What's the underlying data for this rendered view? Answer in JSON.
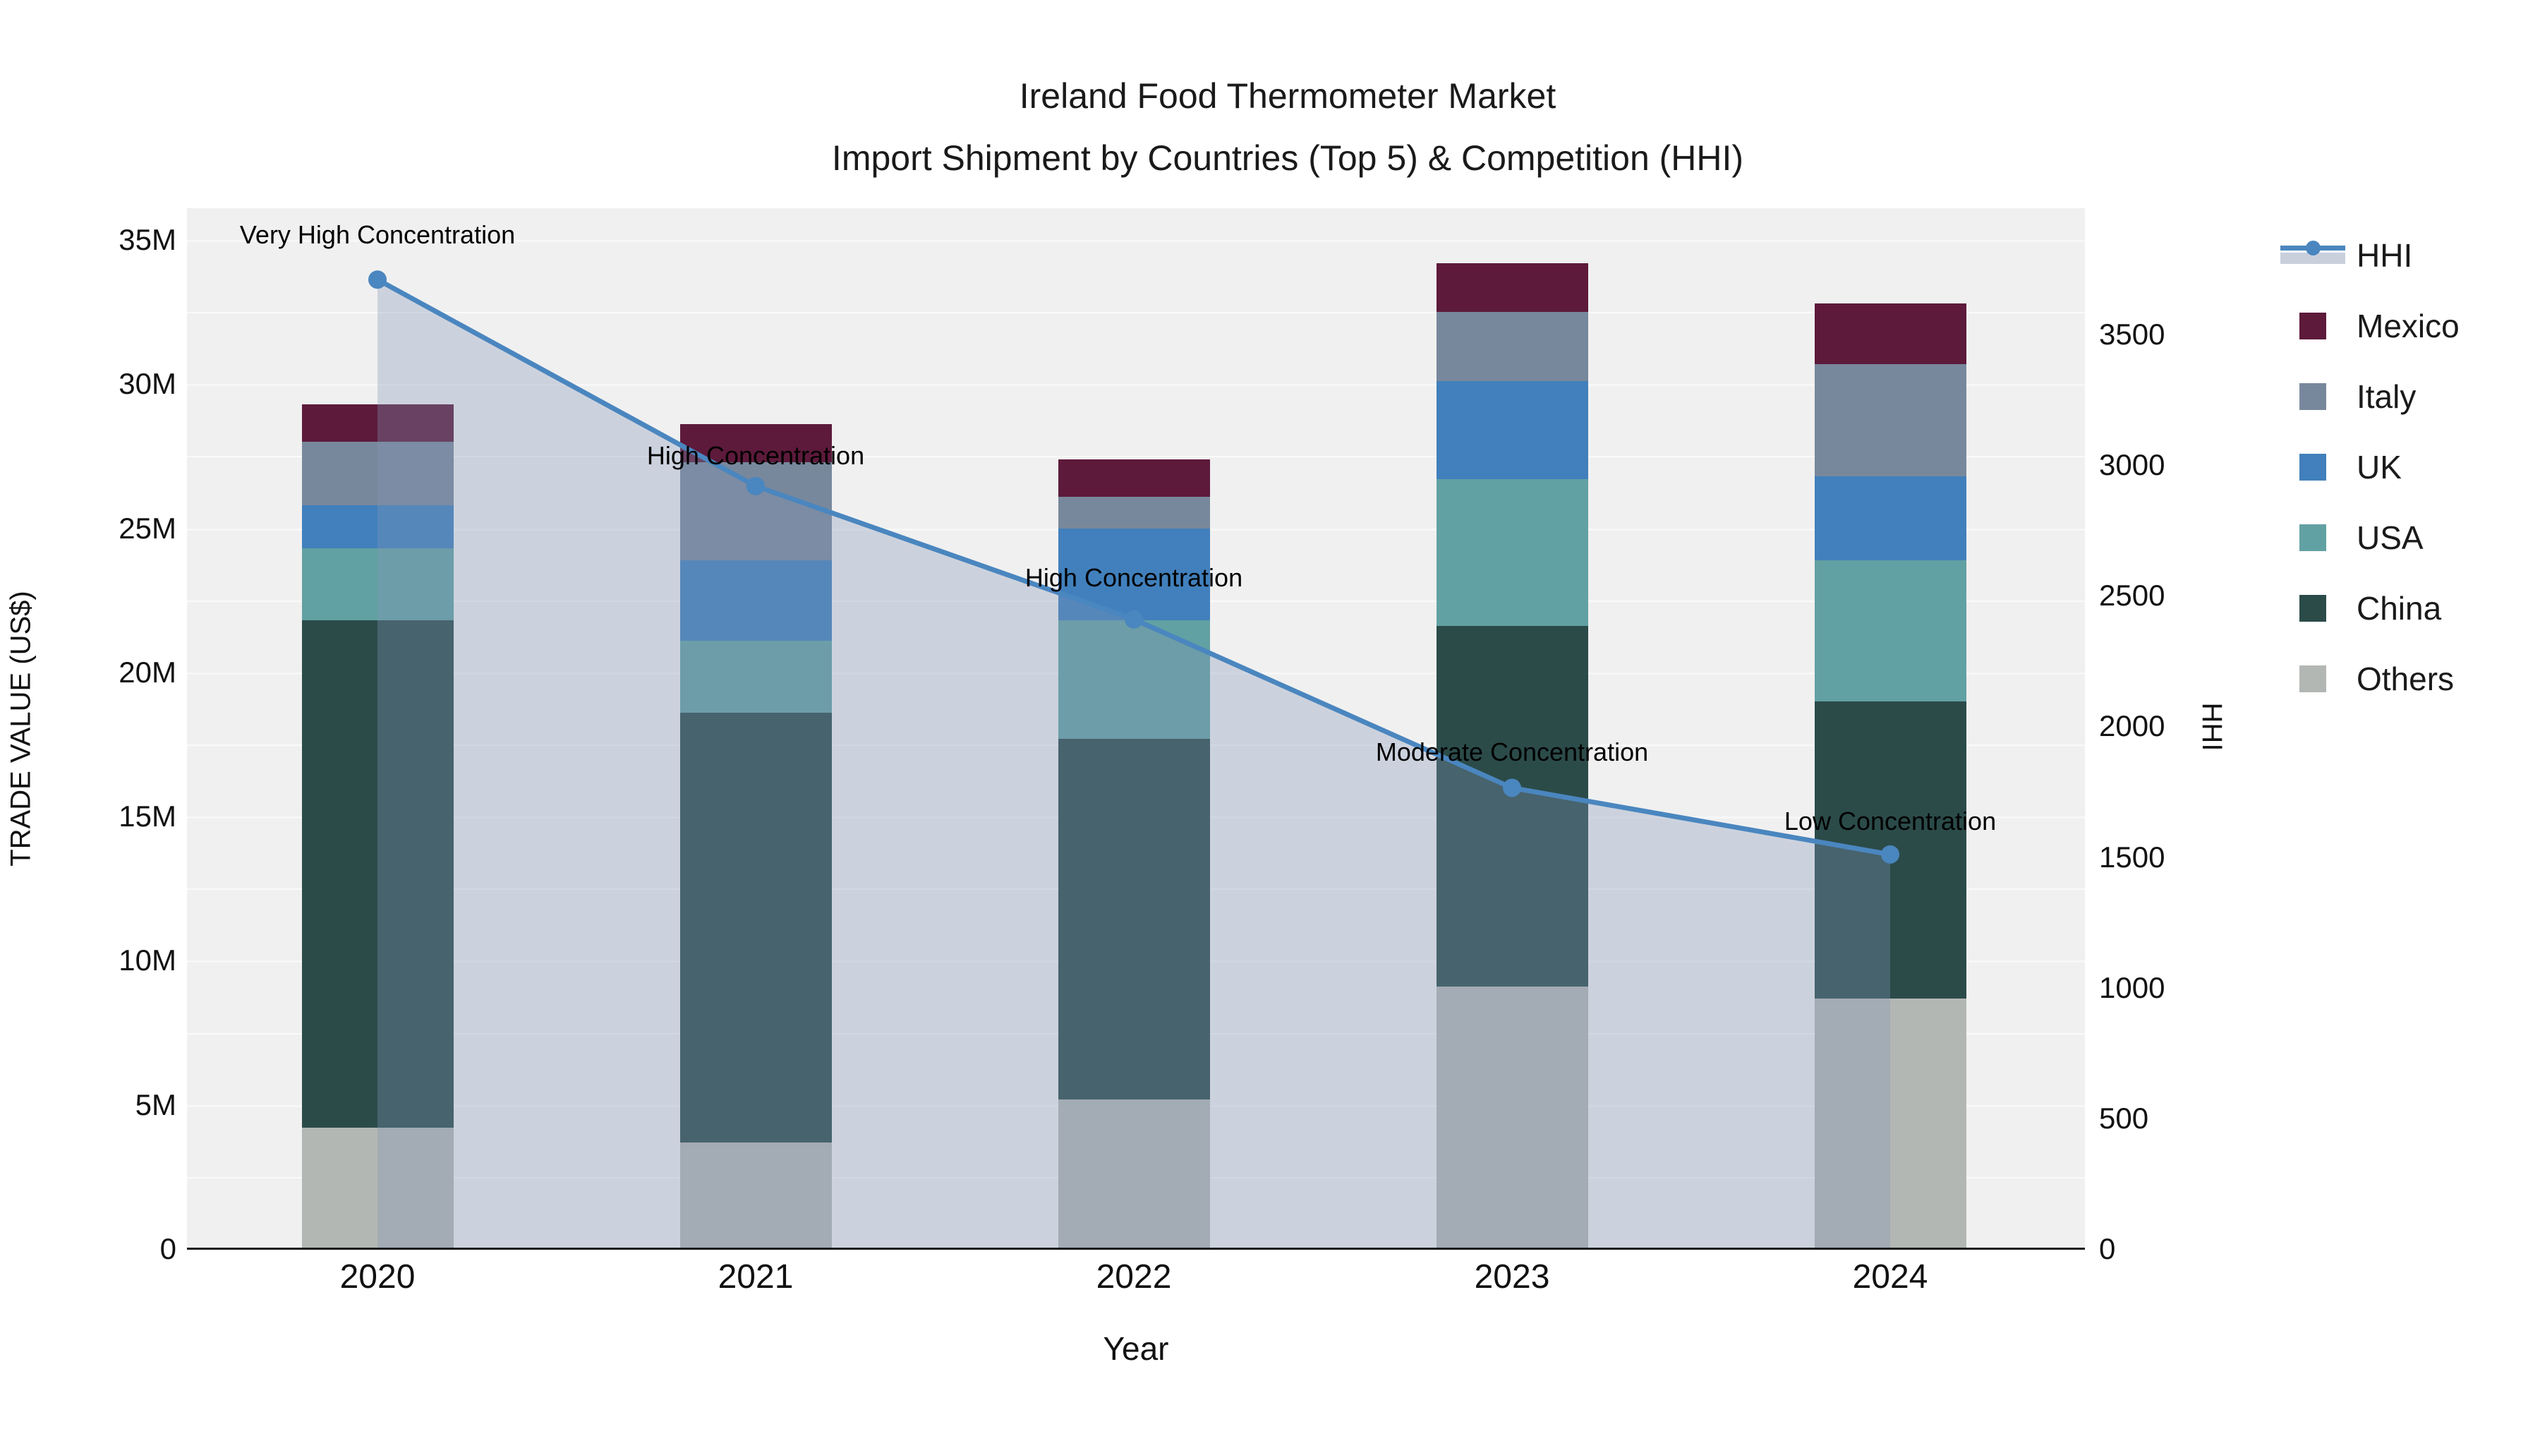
{
  "chart_data": {
    "type": "bar",
    "stacked": true,
    "title": "Ireland Food Thermometer Market",
    "subtitle": "Import Shipment by Countries (Top 5) & Competition (HHI)",
    "xlabel": "Year",
    "ylabel_left": "TRADE VALUE (US$)",
    "ylabel_right": "HHI",
    "categories": [
      "2020",
      "2021",
      "2022",
      "2023",
      "2024"
    ],
    "value_unit": "millions US$",
    "bar_series": [
      {
        "name": "Others",
        "color": "#b3b7b4",
        "values": [
          4.2,
          3.7,
          5.2,
          9.1,
          8.7
        ]
      },
      {
        "name": "China",
        "color": "#2b4b49",
        "values": [
          17.6,
          14.9,
          12.5,
          12.5,
          10.3
        ]
      },
      {
        "name": "USA",
        "color": "#62a1a3",
        "values": [
          2.5,
          2.5,
          4.1,
          5.1,
          4.9
        ]
      },
      {
        "name": "UK",
        "color": "#4180bc",
        "values": [
          1.5,
          2.8,
          3.2,
          3.4,
          2.9
        ]
      },
      {
        "name": "Italy",
        "color": "#78889c",
        "values": [
          2.2,
          3.4,
          1.1,
          2.4,
          3.9
        ]
      },
      {
        "name": "Mexico",
        "color": "#5d1a3b",
        "values": [
          1.3,
          1.3,
          1.3,
          1.7,
          2.1
        ]
      }
    ],
    "bar_totals": [
      29.3,
      28.6,
      27.4,
      34.2,
      32.8
    ],
    "line_series": {
      "name": "HHI",
      "color": "#4a86bf",
      "area_fill": "rgba(130,148,182,0.33)",
      "values": [
        3710,
        2920,
        2410,
        1765,
        1510
      ]
    },
    "annotations": [
      {
        "year": "2020",
        "text": "Very High Concentration"
      },
      {
        "year": "2021",
        "text": "High Concentration"
      },
      {
        "year": "2022",
        "text": "High Concentration"
      },
      {
        "year": "2023",
        "text": "Moderate Concentration"
      },
      {
        "year": "2024",
        "text": "Low Concentration"
      }
    ],
    "y_left": {
      "min": 0,
      "max": 35,
      "tick_step": 5,
      "ticks": [
        "0",
        "5M",
        "10M",
        "15M",
        "20M",
        "25M",
        "30M",
        "35M"
      ]
    },
    "y_right": {
      "min": 0,
      "max": 3500,
      "tick_step": 500,
      "ticks": [
        "0",
        "500",
        "1000",
        "1500",
        "2000",
        "2500",
        "3000",
        "3500"
      ]
    },
    "grid": true,
    "legend_position": "right"
  },
  "legend": {
    "items": [
      {
        "label": "HHI",
        "type": "line",
        "color": "#4a86bf",
        "fill": "#c9d0dc"
      },
      {
        "label": "Mexico",
        "type": "swatch",
        "color": "#5d1a3b"
      },
      {
        "label": "Italy",
        "type": "swatch",
        "color": "#78889c"
      },
      {
        "label": "UK",
        "type": "swatch",
        "color": "#4180bc"
      },
      {
        "label": "USA",
        "type": "swatch",
        "color": "#62a1a3"
      },
      {
        "label": "China",
        "type": "swatch",
        "color": "#2b4b49"
      },
      {
        "label": "Others",
        "type": "swatch",
        "color": "#b3b7b4"
      }
    ]
  },
  "colors": {
    "plot_background": "#f0f0f0",
    "gridline": "#fafafa",
    "axis_line": "#1a1a1a",
    "text": "#111111"
  }
}
